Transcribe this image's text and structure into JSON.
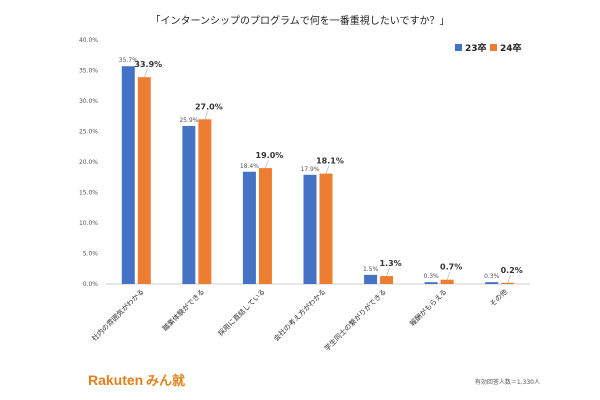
{
  "chart_data": {
    "type": "bar",
    "title": "「インターンシップのプログラムで何を一番重視したいですか？」",
    "categories": [
      "社内の雰囲気がわかる",
      "職業体験ができる",
      "採用に直結している",
      "会社の考え方がわかる",
      "学生同士の繋がりができる",
      "報酬がもらえる",
      "その他"
    ],
    "series": [
      {
        "name": "23卒",
        "values": [
          35.7,
          25.9,
          18.4,
          17.9,
          1.5,
          0.3,
          0.3
        ],
        "labels": [
          "35.7%",
          "25.9%",
          "18.4%",
          "17.9%",
          "1.5%",
          "0.3%",
          "0.3%"
        ]
      },
      {
        "name": "24卒",
        "values": [
          33.9,
          27.0,
          19.0,
          18.1,
          1.3,
          0.7,
          0.2
        ],
        "labels": [
          "33.9%",
          "27.0%",
          "19.0%",
          "18.1%",
          "1.3%",
          "0.7%",
          "0.2%"
        ]
      }
    ],
    "ylim": [
      0,
      40
    ],
    "yticks": [
      0,
      5,
      10,
      15,
      20,
      25,
      30,
      35,
      40
    ],
    "ytick_labels": [
      "0.0%",
      "5.0%",
      "10.0%",
      "15.0%",
      "20.0%",
      "25.0%",
      "30.0%",
      "35.0%",
      "40.0%"
    ],
    "grid": false,
    "legend_position": "top-right",
    "colors": {
      "23卒": "#4472c4",
      "24卒": "#ed7d31"
    }
  },
  "branding": {
    "logo_main": "Rakuten",
    "logo_sub": "みん就"
  },
  "footnote": "有効回答人数＝1,330人"
}
